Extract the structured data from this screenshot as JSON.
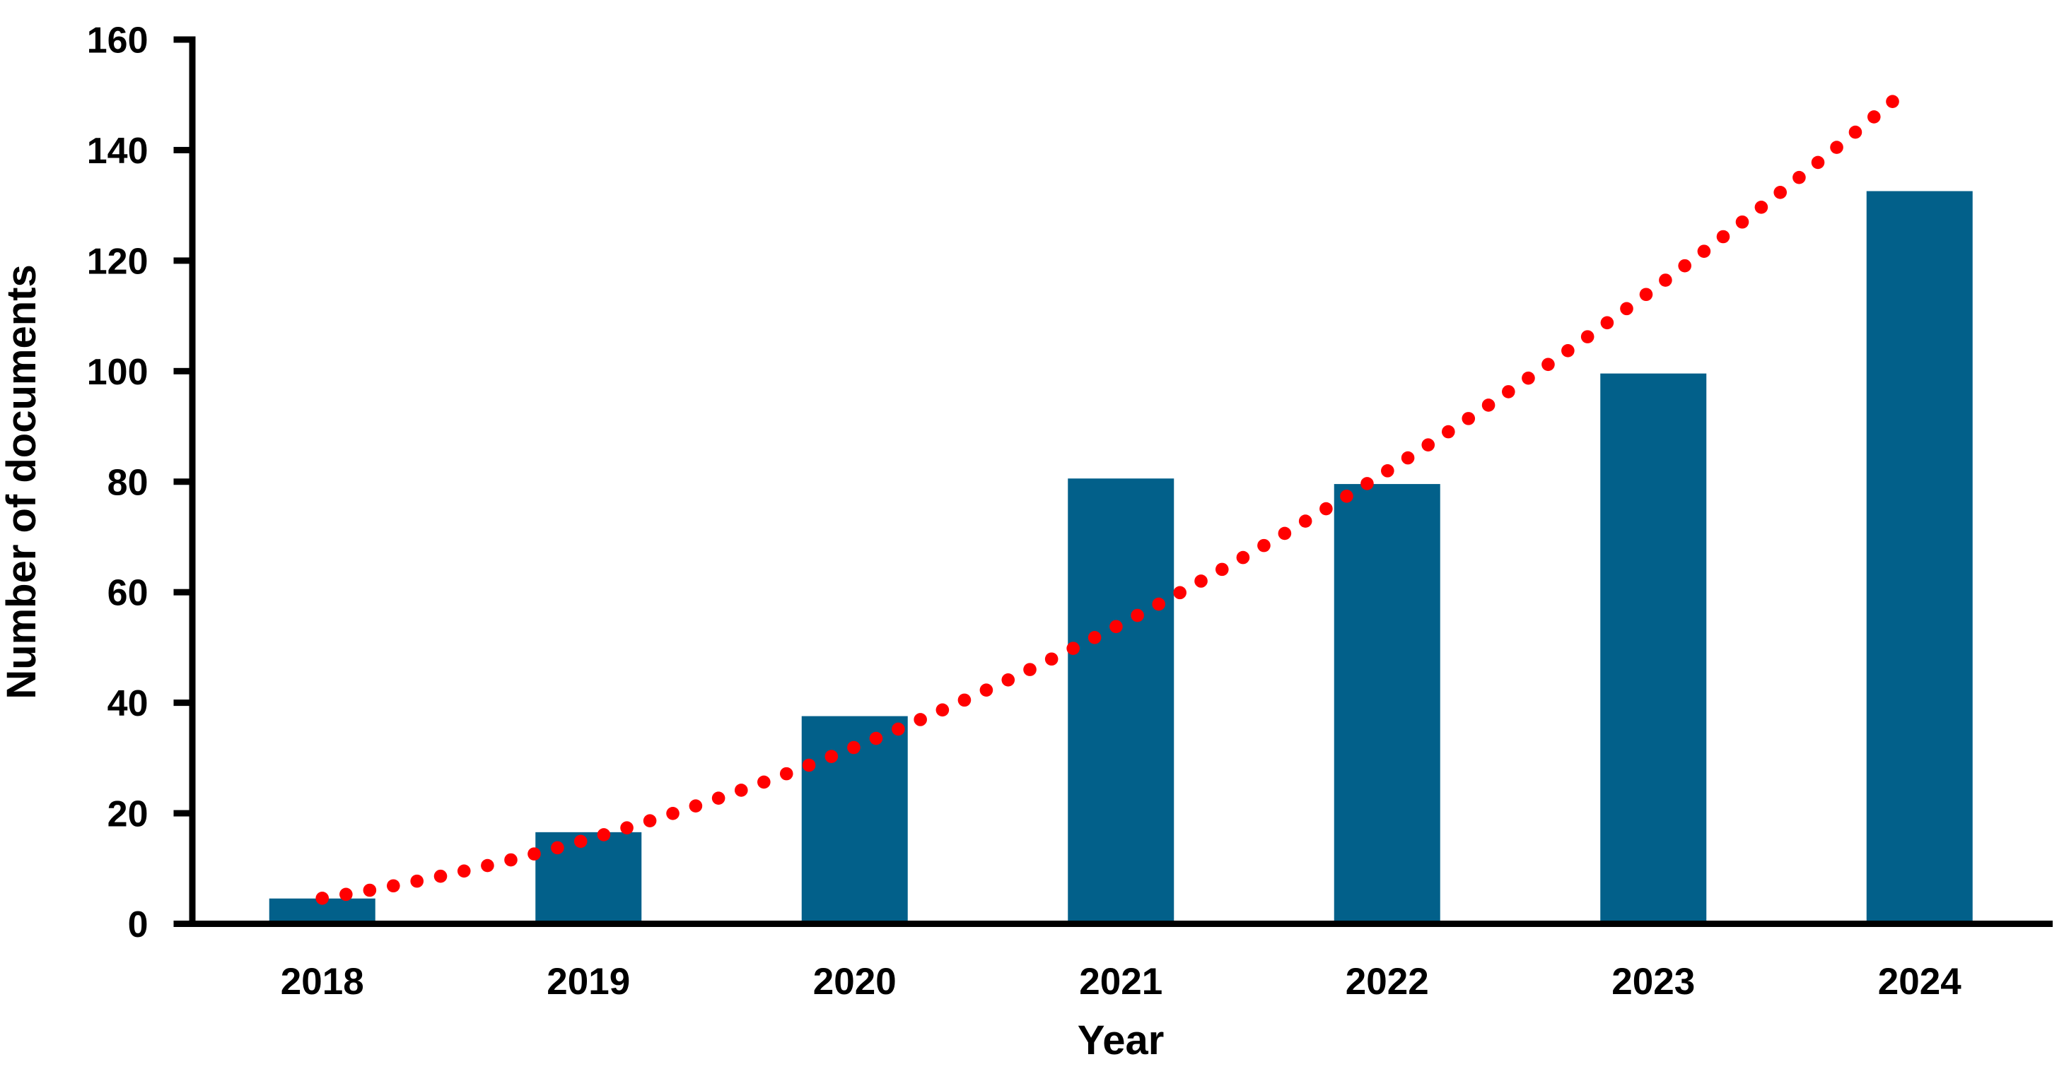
{
  "chart_data": {
    "type": "bar",
    "categories": [
      "2018",
      "2019",
      "2020",
      "2021",
      "2022",
      "2023",
      "2024"
    ],
    "values": [
      4,
      16,
      37,
      80,
      79,
      99,
      132
    ],
    "title": "",
    "xlabel": "Year",
    "ylabel": "Number of documents",
    "ylim": [
      0,
      160
    ],
    "ytick_step": 20,
    "ytick_labels": [
      "0",
      "20",
      "40",
      "60",
      "80",
      "100",
      "120",
      "140",
      "160"
    ],
    "grid": false,
    "legend_position": "none",
    "bar_color": "#02608A",
    "axis_color": "#000000",
    "trendline": {
      "type": "power",
      "style": "dotted",
      "color": "#FF0000",
      "coefficient": 4.05,
      "exponent": 1.864,
      "t_start": 1.0,
      "t_end": 6.96
    }
  }
}
